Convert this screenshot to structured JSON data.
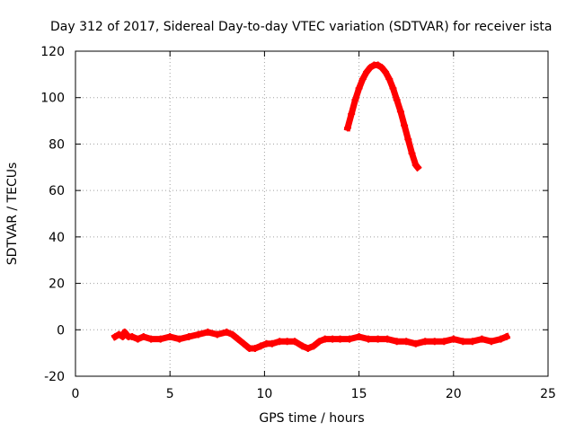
{
  "chart_data": {
    "type": "scatter",
    "title": "Day 312 of 2017, Sidereal Day-to-day VTEC variation (SDTVAR) for receiver ista",
    "xlabel": "GPS time / hours",
    "ylabel": "SDTVAR / TECUs",
    "xlim": [
      0,
      25
    ],
    "ylim": [
      -20,
      120
    ],
    "xticks": [
      0,
      5,
      10,
      15,
      20,
      25
    ],
    "yticks": [
      -20,
      0,
      20,
      40,
      60,
      80,
      100,
      120
    ],
    "grid": true,
    "series": [
      {
        "name": "SDTVAR",
        "color": "#ff0000",
        "marker": "plus",
        "segments": [
          {
            "x": [
              2.1,
              2.3,
              2.5,
              2.6,
              2.8,
              3.0,
              3.3,
              3.6,
              4.0,
              4.5,
              5.0,
              5.5,
              6.0,
              6.5,
              7.0,
              7.5,
              8.0,
              8.3,
              8.6,
              8.9,
              9.2,
              9.5,
              9.8,
              10.1,
              10.4,
              10.8,
              11.2,
              11.6,
              12.0,
              12.3,
              12.6,
              12.9,
              13.2,
              13.6,
              14.0,
              14.5,
              15.0,
              15.5,
              16.0,
              16.5,
              17.0,
              17.5,
              18.0,
              18.5,
              19.0,
              19.5,
              20.0,
              20.5,
              21.0,
              21.5,
              22.0,
              22.5,
              22.8
            ],
            "y": [
              -3,
              -2,
              -3,
              -1,
              -3,
              -3,
              -4,
              -3,
              -4,
              -4,
              -3,
              -4,
              -3,
              -2,
              -1,
              -2,
              -1,
              -2,
              -4,
              -6,
              -8,
              -8,
              -7,
              -6,
              -6,
              -5,
              -5,
              -5,
              -7,
              -8,
              -7,
              -5,
              -4,
              -4,
              -4,
              -4,
              -3,
              -4,
              -4,
              -4,
              -5,
              -5,
              -6,
              -5,
              -5,
              -5,
              -4,
              -5,
              -5,
              -4,
              -5,
              -4,
              -3
            ]
          },
          {
            "x": [
              14.4,
              14.6,
              14.8,
              15.0,
              15.2,
              15.4,
              15.6,
              15.8,
              16.0,
              16.2,
              16.4,
              16.6,
              16.8,
              17.0,
              17.2,
              17.4,
              17.6,
              17.8,
              18.0,
              18.1
            ],
            "y": [
              87,
              93,
              99,
              104,
              108,
              111,
              113,
              114,
              114,
              113,
              111,
              108,
              104,
              99,
              94,
              88,
              82,
              76,
              71,
              70
            ]
          }
        ]
      }
    ]
  }
}
